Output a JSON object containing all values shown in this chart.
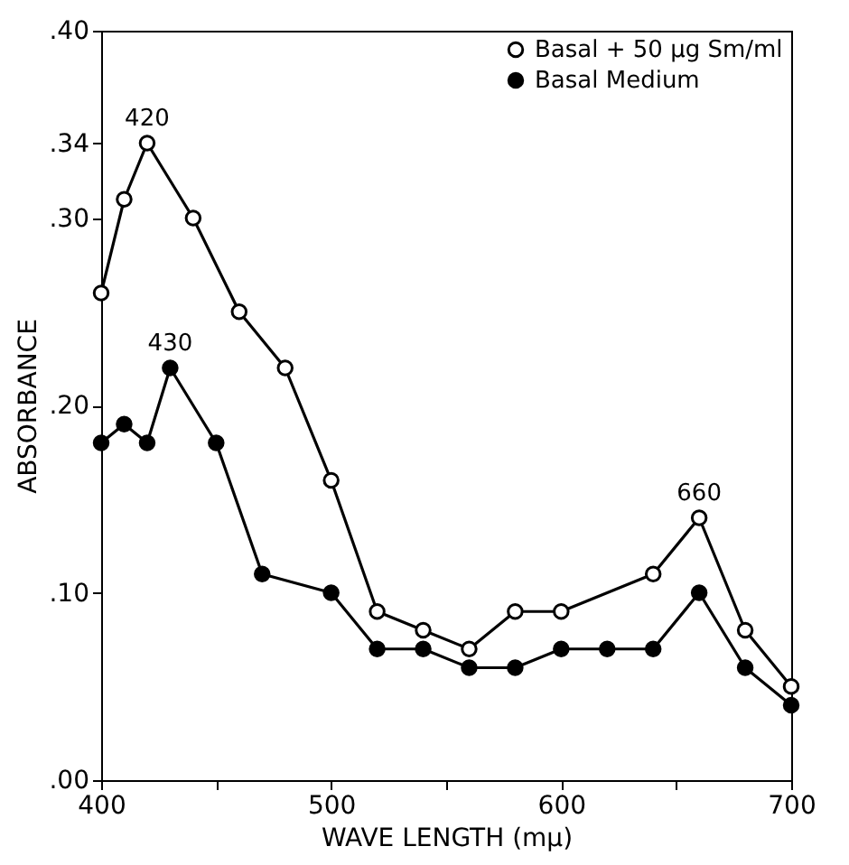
{
  "chart_data": {
    "type": "line",
    "xlabel": "WAVE LENGTH (mμ)",
    "ylabel": "ABSORBANCE",
    "xlim": [
      400,
      700
    ],
    "xticks": [
      400,
      {
        "value": 450,
        "label": null
      },
      500,
      {
        "value": 550,
        "label": null
      },
      600,
      {
        "value": 650,
        "label": null
      },
      700
    ],
    "ylim": [
      0,
      0.4
    ],
    "yticks": [
      {
        "value": 0,
        "label": ".00"
      },
      {
        "value": 0.1,
        "label": ".10"
      },
      {
        "value": 0.2,
        "label": ".20"
      },
      {
        "value": 0.3,
        "label": ".30"
      },
      {
        "value": 0.34,
        "label": ".34"
      },
      {
        "value": 0.4,
        "label": ".40"
      }
    ],
    "grid": false,
    "legend": "top right",
    "marker": "circle",
    "line_style": "solid",
    "series": [
      {
        "name": "Basal + 50 μg Sm/ml",
        "color": "#000000",
        "x": [
          400,
          410,
          420,
          440,
          460,
          480,
          500,
          520,
          540,
          560,
          580,
          600,
          640,
          660,
          680,
          700
        ],
        "values": [
          0.26,
          0.31,
          0.34,
          0.3,
          0.25,
          0.22,
          0.16,
          0.09,
          0.08,
          0.07,
          0.09,
          0.09,
          0.11,
          0.14,
          0.08,
          0.05
        ]
      },
      {
        "name": "Basal Medium",
        "color": "#000000",
        "x": [
          400,
          410,
          420,
          430,
          450,
          470,
          500,
          520,
          540,
          560,
          580,
          600,
          620,
          640,
          660,
          680,
          700
        ],
        "values": [
          0.18,
          0.19,
          0.18,
          0.22,
          0.18,
          0.11,
          0.1,
          0.07,
          0.07,
          0.06,
          0.06,
          0.07,
          0.07,
          0.07,
          0.1,
          0.06,
          0.04
        ]
      }
    ],
    "annotations": [
      {
        "text": "420",
        "x": 420,
        "y": 0.34
      },
      {
        "text": "430",
        "x": 430,
        "y": 0.22
      },
      {
        "text": "660",
        "x": 660,
        "y": 0.14
      }
    ]
  }
}
